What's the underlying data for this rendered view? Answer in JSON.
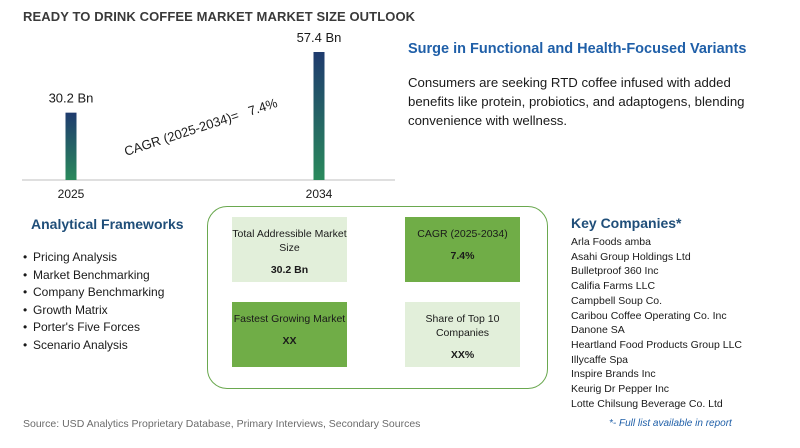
{
  "title": "READY TO DRINK COFFEE MARKET MARKET SIZE OUTLOOK",
  "chart_data": {
    "type": "bar",
    "categories": [
      "2025",
      "2034"
    ],
    "values": [
      30.2,
      57.4
    ],
    "value_labels": [
      "30.2 Bn",
      "57.4 Bn"
    ],
    "annotation": "CAGR (2025-2034)=   7.4%",
    "bar_gradient": [
      "#1f3b6e",
      "#2a8a5c"
    ],
    "axis_color": "#bfbfbf",
    "grid": false,
    "legend": "none"
  },
  "feature": {
    "title": "Surge in Functional and Health-Focused Variants",
    "text": "Consumers are seeking RTD coffee infused with added benefits like protein, probiotics, and adaptogens, blending convenience with wellness."
  },
  "frameworks": {
    "title": "Analytical Frameworks",
    "items": [
      "Pricing Analysis",
      "Market Benchmarking",
      "Company Benchmarking",
      "Growth Matrix",
      "Porter's Five Forces",
      "Scenario Analysis"
    ]
  },
  "metrics": {
    "tam": {
      "label": "Total Addressible Market Size",
      "value": "30.2 Bn"
    },
    "cagr": {
      "label": "CAGR (2025-2034)",
      "value": "7.4%"
    },
    "fastest": {
      "label": "Fastest Growing Market",
      "value": "XX"
    },
    "share": {
      "label": "Share of Top 10 Companies",
      "value": "XX%"
    },
    "colors": {
      "light": "#e2efda",
      "dark": "#70ad47",
      "border": "#6aa84f"
    }
  },
  "companies": {
    "title": "Key Companies*",
    "items": [
      "Arla Foods amba",
      "Asahi Group Holdings Ltd",
      "Bulletproof 360 Inc",
      "Califia Farms LLC",
      "Campbell Soup Co.",
      "Caribou Coffee Operating Co. Inc",
      "Danone SA",
      "Heartland Food Products Group LLC",
      "Illycaffe Spa",
      "Inspire Brands Inc",
      "Keurig Dr Pepper Inc",
      "Lotte Chilsung Beverage Co. Ltd"
    ],
    "note": "*- Full list available in report"
  },
  "source": "Source: USD Analytics Proprietary Database, Primary Interviews, Secondary Sources"
}
